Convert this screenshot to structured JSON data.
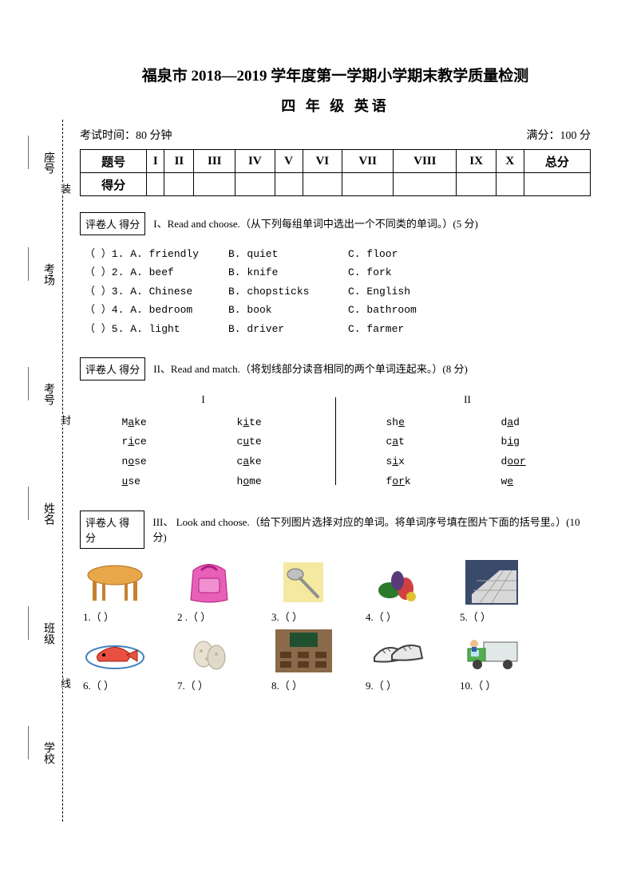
{
  "title": "福泉市 2018—2019 学年度第一学期小学期末教学质量检测",
  "subtitle": "四 年 级 英语",
  "exam_time": "考试时间：80 分钟",
  "full_score": "满分：100 分",
  "score_table": {
    "headers": [
      "题号",
      "I",
      "II",
      "III",
      "IV",
      "V",
      "VI",
      "VII",
      "VIII",
      "IX",
      "X",
      "总分"
    ],
    "row_label": "得分"
  },
  "gradebox_text": "评卷人  得分",
  "section1": {
    "header": "I、Read and choose.（从下列每组单词中选出一个不同类的单词。）(5 分)",
    "items": [
      {
        "n": "1",
        "a": "friendly",
        "b": "quiet",
        "c": "floor"
      },
      {
        "n": "2",
        "a": "beef",
        "b": "knife",
        "c": "fork"
      },
      {
        "n": "3",
        "a": "Chinese",
        "b": "chopsticks",
        "c": "English"
      },
      {
        "n": "4",
        "a": "bedroom",
        "b": "book",
        "c": "bathroom"
      },
      {
        "n": "5",
        "a": "light",
        "b": "driver",
        "c": "farmer"
      }
    ]
  },
  "section2": {
    "header": "II、Read and match.（将划线部分读音相同的两个单词连起来。）(8 分)",
    "col1_label": "I",
    "col2_label": "II",
    "col1": [
      {
        "l": {
          "pre": "M",
          "u": "a",
          "post": "ke"
        },
        "r": {
          "pre": "k",
          "u": "i",
          "post": "te"
        }
      },
      {
        "l": {
          "pre": "r",
          "u": "i",
          "post": "ce"
        },
        "r": {
          "pre": "c",
          "u": "u",
          "post": "te"
        }
      },
      {
        "l": {
          "pre": "n",
          "u": "o",
          "post": "se"
        },
        "r": {
          "pre": "c",
          "u": "a",
          "post": "ke"
        }
      },
      {
        "l": {
          "pre": "",
          "u": "u",
          "post": "se"
        },
        "r": {
          "pre": "h",
          "u": "o",
          "post": "me"
        }
      }
    ],
    "col2": [
      {
        "l": {
          "pre": "sh",
          "u": "e",
          "post": ""
        },
        "r": {
          "pre": "d",
          "u": "a",
          "post": "d"
        }
      },
      {
        "l": {
          "pre": "c",
          "u": "a",
          "post": "t"
        },
        "r": {
          "pre": "b",
          "u": "i",
          "post": "g"
        }
      },
      {
        "l": {
          "pre": "s",
          "u": "i",
          "post": "x"
        },
        "r": {
          "pre": "d",
          "u": "oor",
          "post": ""
        }
      },
      {
        "l": {
          "pre": "f",
          "u": "or",
          "post": "k"
        },
        "r": {
          "pre": "w",
          "u": "e",
          "post": ""
        }
      }
    ]
  },
  "section3": {
    "header": "III、 Look and choose.（给下列图片选择对应的单词。将单词序号填在图片下面的括号里。）(10 分)",
    "row1": [
      "1.（    ）",
      "2 .（    ）",
      "3.（    ）",
      "4.（    ）",
      "5.（    ）"
    ],
    "row2": [
      "6.（    ）",
      "7.（    ）",
      "8.（    ）",
      "9.（    ）",
      "10.（    ）"
    ]
  },
  "sidebar": {
    "labels": [
      "座号",
      "考场",
      "考号",
      "姓名",
      "班级",
      "学校"
    ],
    "cut": [
      "装",
      "封",
      "线"
    ]
  }
}
